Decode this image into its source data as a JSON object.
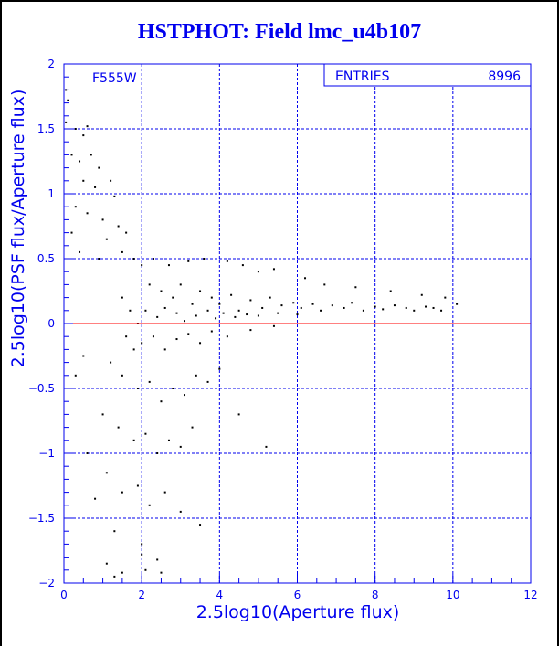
{
  "title": "HSTPHOT: Field lmc_u4b107",
  "colors": {
    "axes": "#0000ee",
    "points": "#000000",
    "zero_line": "#ff0000",
    "title": "#0000ee"
  },
  "chart_data": {
    "type": "scatter",
    "title": "HSTPHOT: Field lmc_u4b107",
    "xlabel": "2.5log10(Aperture flux)",
    "ylabel": "2.5log10(PSF flux/Aperture flux)",
    "xlim": [
      0,
      12
    ],
    "ylim": [
      -2,
      2
    ],
    "xticks": [
      "0",
      "2",
      "4",
      "6",
      "8",
      "10",
      "12"
    ],
    "yticks": [
      "-2",
      "-1.5",
      "-1",
      "-0.5",
      "0",
      "0.5",
      "1",
      "1.5",
      "2"
    ],
    "grid": true,
    "reference_line_y": 0,
    "annotation": "F555W",
    "stats_box": {
      "label": "ENTRIES",
      "value": "8996"
    },
    "points_note": "representative sample of the 8996 entries",
    "points": [
      [
        0.05,
        1.8
      ],
      [
        0.1,
        1.72
      ],
      [
        0.05,
        1.55
      ],
      [
        0.3,
        1.5
      ],
      [
        0.5,
        1.45
      ],
      [
        0.6,
        1.52
      ],
      [
        0.2,
        1.3
      ],
      [
        0.4,
        1.25
      ],
      [
        0.7,
        1.3
      ],
      [
        0.9,
        1.2
      ],
      [
        0.5,
        1.1
      ],
      [
        0.8,
        1.05
      ],
      [
        1.2,
        1.1
      ],
      [
        1.3,
        0.98
      ],
      [
        0.3,
        0.9
      ],
      [
        0.6,
        0.85
      ],
      [
        1.0,
        0.8
      ],
      [
        1.4,
        0.75
      ],
      [
        1.6,
        0.7
      ],
      [
        1.1,
        0.65
      ],
      [
        0.2,
        0.7
      ],
      [
        0.4,
        0.55
      ],
      [
        0.9,
        0.5
      ],
      [
        1.5,
        0.55
      ],
      [
        1.8,
        0.5
      ],
      [
        2.0,
        0.45
      ],
      [
        2.3,
        0.5
      ],
      [
        2.7,
        0.45
      ],
      [
        3.2,
        0.48
      ],
      [
        3.6,
        0.5
      ],
      [
        4.2,
        0.48
      ],
      [
        4.6,
        0.45
      ],
      [
        5.0,
        0.4
      ],
      [
        5.4,
        0.42
      ],
      [
        6.2,
        0.35
      ],
      [
        6.7,
        0.3
      ],
      [
        7.5,
        0.28
      ],
      [
        8.4,
        0.25
      ],
      [
        9.2,
        0.22
      ],
      [
        9.8,
        0.2
      ],
      [
        2.2,
        0.3
      ],
      [
        2.5,
        0.25
      ],
      [
        2.8,
        0.2
      ],
      [
        3.0,
        0.3
      ],
      [
        3.3,
        0.15
      ],
      [
        3.5,
        0.25
      ],
      [
        3.8,
        0.2
      ],
      [
        4.0,
        0.15
      ],
      [
        4.3,
        0.22
      ],
      [
        4.5,
        0.1
      ],
      [
        4.8,
        0.18
      ],
      [
        5.1,
        0.12
      ],
      [
        5.3,
        0.2
      ],
      [
        5.6,
        0.14
      ],
      [
        5.9,
        0.16
      ],
      [
        6.1,
        0.12
      ],
      [
        6.4,
        0.15
      ],
      [
        6.6,
        0.1
      ],
      [
        6.9,
        0.14
      ],
      [
        7.2,
        0.12
      ],
      [
        7.4,
        0.16
      ],
      [
        7.7,
        0.1
      ],
      [
        8.0,
        0.13
      ],
      [
        8.2,
        0.11
      ],
      [
        8.5,
        0.14
      ],
      [
        8.8,
        0.12
      ],
      [
        9.0,
        0.1
      ],
      [
        9.3,
        0.13
      ],
      [
        9.5,
        0.12
      ],
      [
        9.7,
        0.1
      ],
      [
        10.1,
        0.15
      ],
      [
        2.1,
        0.1
      ],
      [
        2.4,
        0.05
      ],
      [
        2.6,
        0.12
      ],
      [
        2.9,
        0.08
      ],
      [
        3.1,
        0.02
      ],
      [
        3.4,
        0.06
      ],
      [
        3.7,
        0.1
      ],
      [
        3.9,
        0.04
      ],
      [
        4.1,
        0.08
      ],
      [
        4.4,
        0.05
      ],
      [
        4.7,
        0.07
      ],
      [
        5.0,
        0.06
      ],
      [
        5.5,
        0.08
      ],
      [
        6.0,
        0.07
      ],
      [
        1.5,
        0.2
      ],
      [
        1.7,
        0.1
      ],
      [
        1.9,
        0.0
      ],
      [
        1.6,
        -0.1
      ],
      [
        1.8,
        -0.2
      ],
      [
        2.0,
        -0.15
      ],
      [
        2.3,
        -0.1
      ],
      [
        2.6,
        -0.2
      ],
      [
        2.9,
        -0.12
      ],
      [
        3.2,
        -0.08
      ],
      [
        3.5,
        -0.15
      ],
      [
        3.8,
        -0.06
      ],
      [
        4.2,
        -0.1
      ],
      [
        4.8,
        -0.05
      ],
      [
        5.4,
        -0.02
      ],
      [
        1.2,
        -0.3
      ],
      [
        1.5,
        -0.4
      ],
      [
        1.9,
        -0.5
      ],
      [
        2.2,
        -0.45
      ],
      [
        2.5,
        -0.6
      ],
      [
        2.8,
        -0.5
      ],
      [
        3.1,
        -0.55
      ],
      [
        3.4,
        -0.4
      ],
      [
        3.7,
        -0.45
      ],
      [
        4.0,
        -0.35
      ],
      [
        1.0,
        -0.7
      ],
      [
        1.4,
        -0.8
      ],
      [
        1.8,
        -0.9
      ],
      [
        2.1,
        -0.85
      ],
      [
        2.4,
        -1.0
      ],
      [
        2.7,
        -0.9
      ],
      [
        3.0,
        -0.95
      ],
      [
        3.3,
        -0.8
      ],
      [
        4.5,
        -0.7
      ],
      [
        5.2,
        -0.95
      ],
      [
        0.6,
        -1.0
      ],
      [
        1.1,
        -1.15
      ],
      [
        1.5,
        -1.3
      ],
      [
        1.9,
        -1.25
      ],
      [
        2.2,
        -1.4
      ],
      [
        2.6,
        -1.3
      ],
      [
        3.0,
        -1.45
      ],
      [
        3.5,
        -1.55
      ],
      [
        0.8,
        -1.35
      ],
      [
        1.3,
        -1.6
      ],
      [
        2.0,
        -1.7
      ],
      [
        2.1,
        -1.9
      ],
      [
        1.1,
        -1.85
      ],
      [
        1.3,
        -1.95
      ],
      [
        1.5,
        -1.92
      ],
      [
        2.0,
        -1.78
      ],
      [
        2.4,
        -1.82
      ],
      [
        2.5,
        -1.92
      ],
      [
        0.3,
        -0.4
      ],
      [
        0.5,
        -0.25
      ]
    ]
  }
}
